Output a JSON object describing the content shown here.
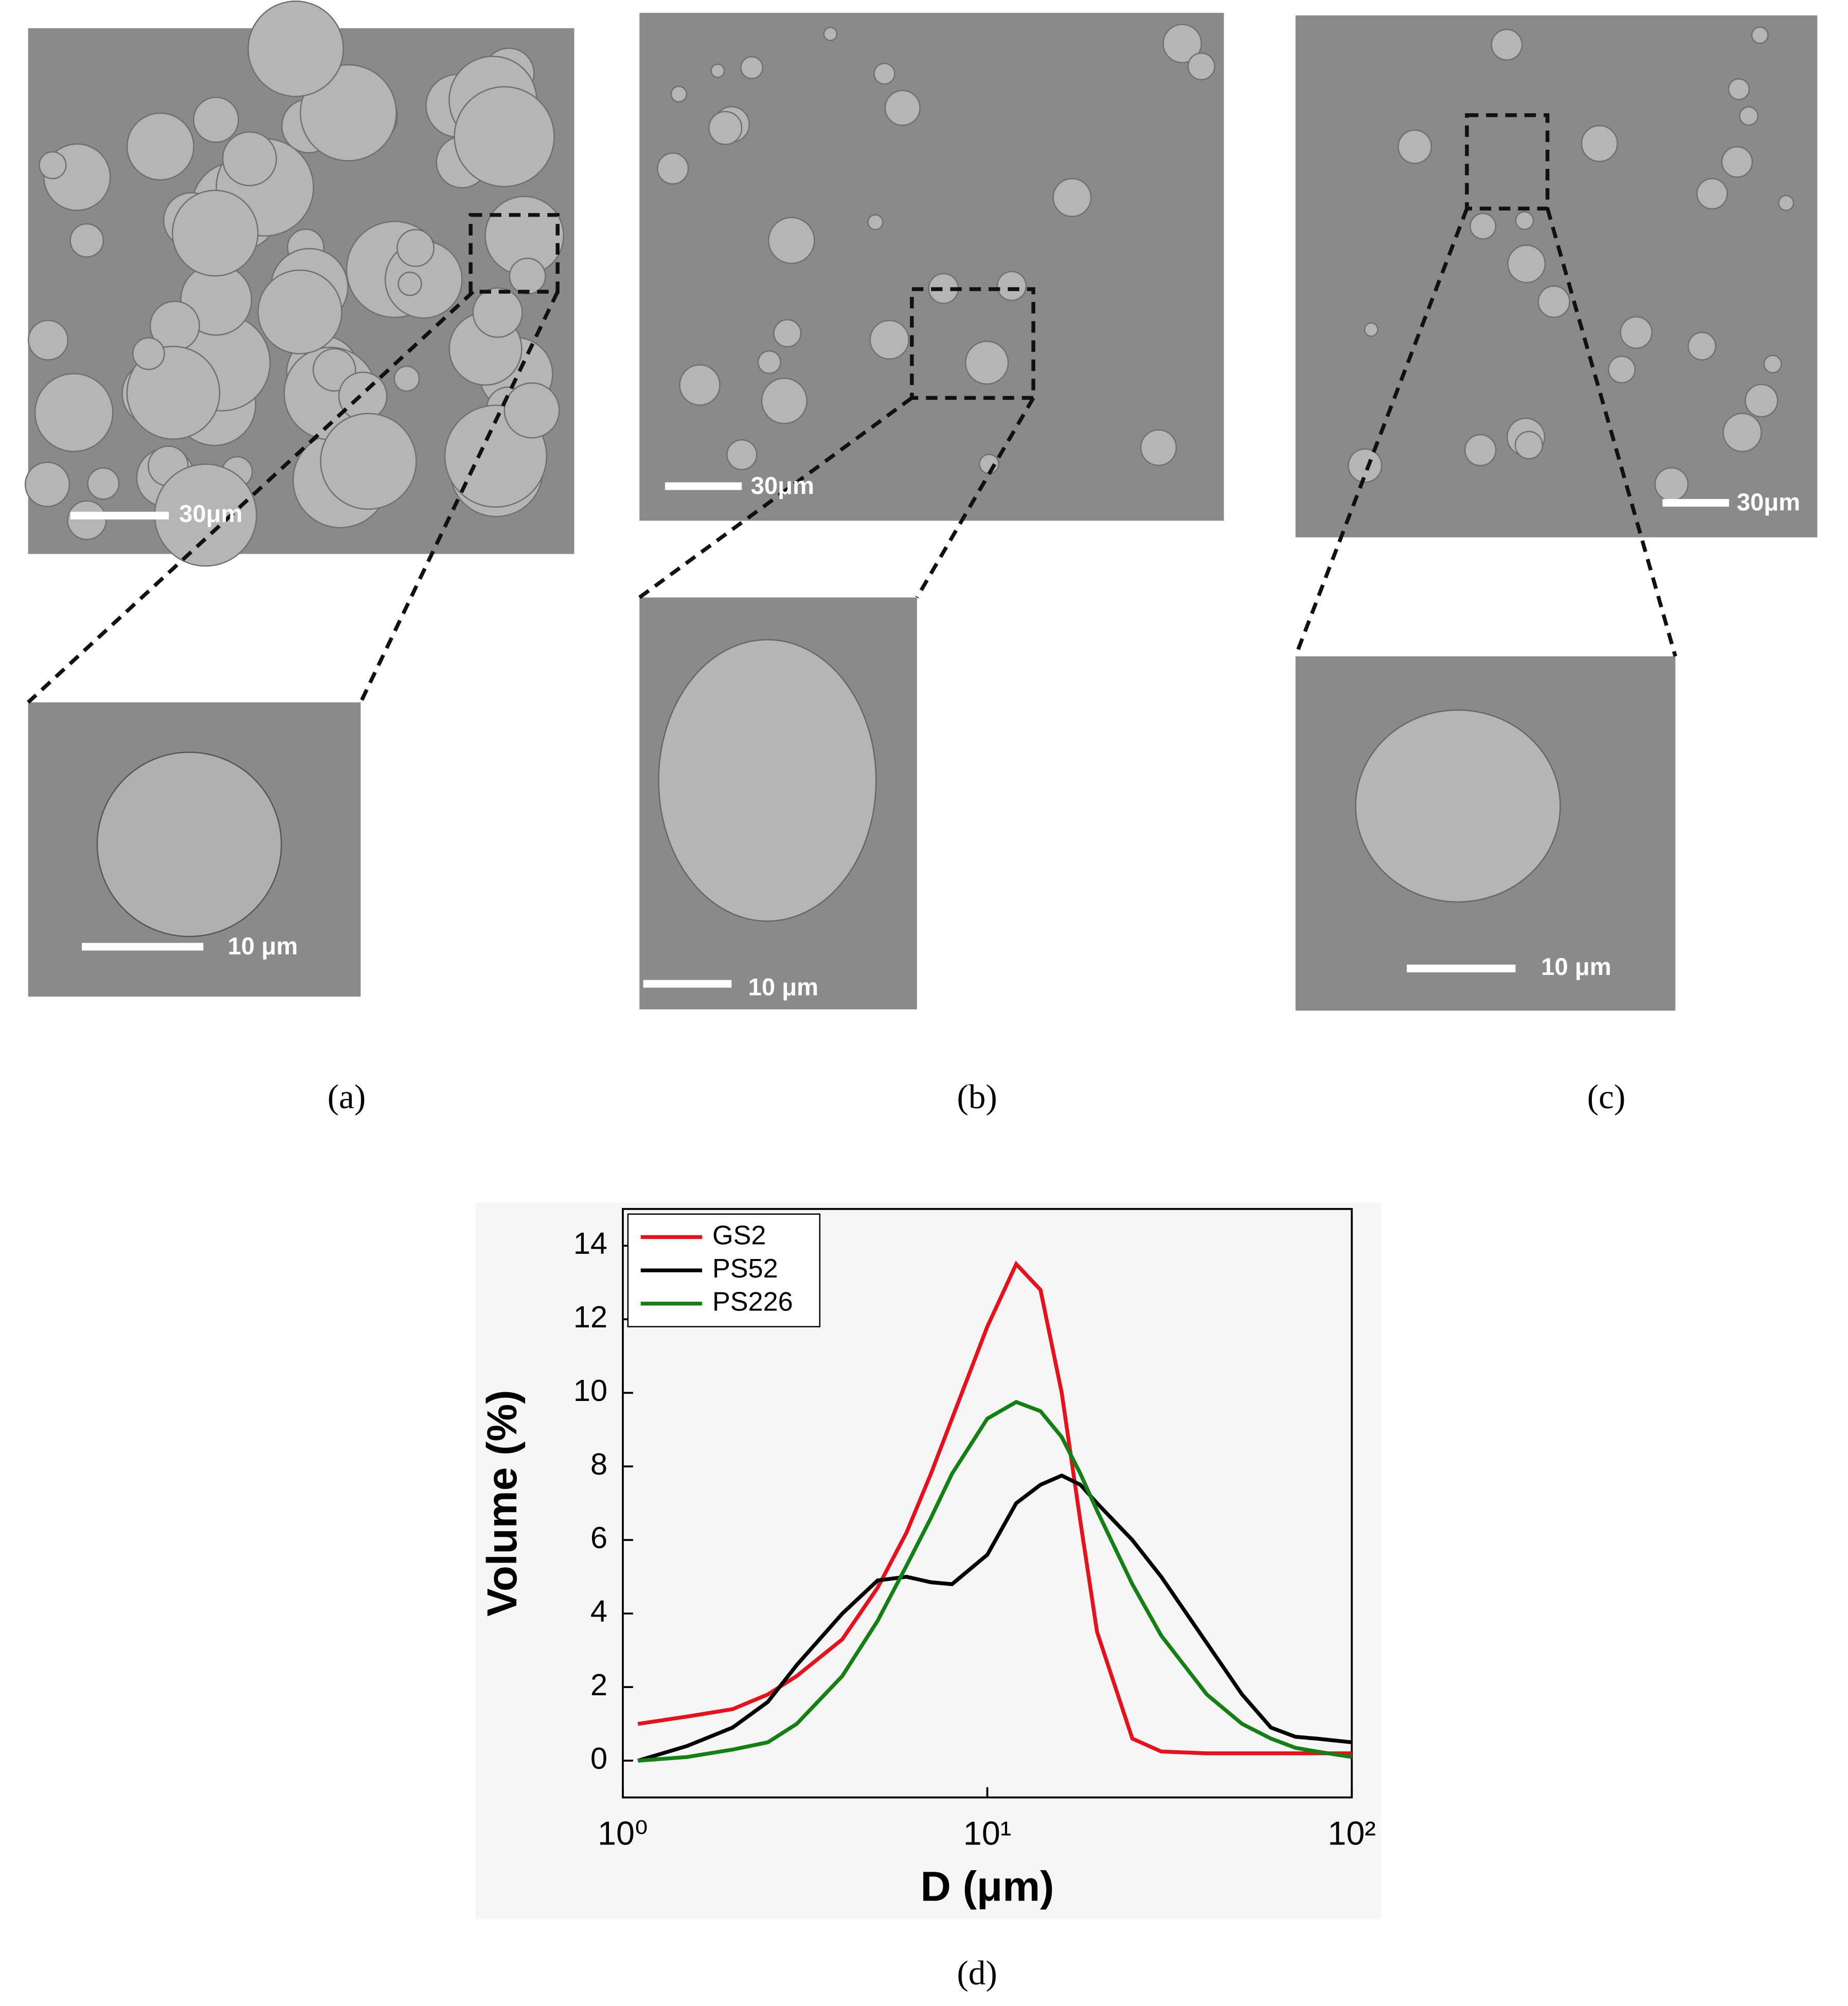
{
  "panels": [
    {
      "label": "(a)",
      "scale_top": "30μm",
      "scale_inset": "10 μm"
    },
    {
      "label": "(b)",
      "scale_top": "30μm",
      "scale_inset": "10 μm"
    },
    {
      "label": "(c)",
      "scale_top": "30μm",
      "scale_inset": "10 μm"
    }
  ],
  "chart_data": {
    "type": "line",
    "label": "(d)",
    "x_label": "D (μm)",
    "y_label": "Volume (%)",
    "x_scale": "log",
    "grid": false,
    "legend": "upper left",
    "x": [
      1.1,
      1.5,
      2,
      2.5,
      3,
      4,
      5,
      6,
      7,
      8,
      10,
      12,
      14,
      16,
      18,
      20,
      25,
      30,
      40,
      50,
      60,
      70,
      80,
      100
    ],
    "series": [
      {
        "name": "GS2",
        "color": "#e8101a",
        "values": [
          1.0,
          1.2,
          1.4,
          1.8,
          2.3,
          3.3,
          4.7,
          6.2,
          7.8,
          9.3,
          11.8,
          13.5,
          12.8,
          10,
          6.5,
          3.5,
          0.6,
          0.25,
          0.2,
          0.2,
          0.2,
          0.2,
          0.2,
          0.2
        ]
      },
      {
        "name": "PS52",
        "color": "#000000",
        "values": [
          0,
          0.4,
          0.9,
          1.6,
          2.6,
          4.0,
          4.9,
          5.0,
          4.85,
          4.8,
          5.6,
          7.0,
          7.5,
          7.75,
          7.5,
          7.0,
          6.0,
          5.0,
          3.2,
          1.8,
          0.9,
          0.65,
          0.6,
          0.5
        ]
      },
      {
        "name": "PS226",
        "color": "#138013",
        "values": [
          0,
          0.1,
          0.3,
          0.5,
          1.0,
          2.3,
          3.8,
          5.3,
          6.6,
          7.8,
          9.3,
          9.75,
          9.5,
          8.8,
          7.8,
          6.8,
          4.8,
          3.4,
          1.8,
          1.0,
          0.6,
          0.35,
          0.25,
          0.1
        ]
      }
    ],
    "xlim": [
      1,
      100
    ],
    "xticks": [
      {
        "value": 1,
        "label": "10⁰"
      },
      {
        "value": 10,
        "label": "10¹"
      },
      {
        "value": 100,
        "label": "10²"
      }
    ],
    "ylim": [
      -1,
      15
    ],
    "yticks": [
      0,
      2,
      4,
      6,
      8,
      10,
      12,
      14
    ]
  }
}
